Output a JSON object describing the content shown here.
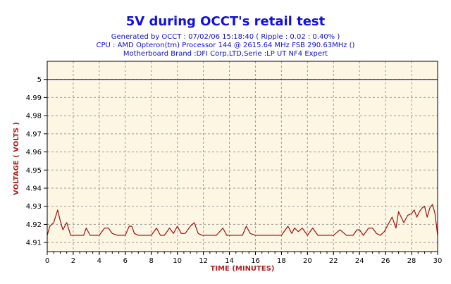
{
  "chart_data": {
    "type": "line",
    "title": "5V during OCCT's retail test",
    "subtitle_lines": [
      "Generated by OCCT : 07/02/06 15:18:40 ( Ripple : 0.02 : 0.40% )",
      "CPU : AMD Opteron(tm) Processor 144    @ 2615.64 MHz FSB 290.63MHz ()",
      "Motherboard Brand :DFI Corp,LTD,Serie :LP UT NF4 Expert"
    ],
    "xlabel": "TIME (MINUTES)",
    "ylabel": "VOLTAGE ( VOLTS )",
    "xlim": [
      0,
      30
    ],
    "ylim": [
      4.905,
      5.01
    ],
    "x_ticks": [
      "0",
      "2",
      "4",
      "6",
      "8",
      "10",
      "12",
      "14",
      "16",
      "18",
      "20",
      "22",
      "24",
      "26",
      "28",
      "30"
    ],
    "y_ticks": [
      "4.91",
      "4.92",
      "4.93",
      "4.94",
      "4.95",
      "4.96",
      "4.97",
      "4.98",
      "4.99",
      "5"
    ],
    "grid": true,
    "colors": {
      "plot_bg": "#fdf6e3",
      "title": "#1010e0",
      "subtitle": "#1010d0",
      "axis_label": "#b02020",
      "ref_line": "#0000c0",
      "series_line": "#a01010"
    },
    "reference_line": {
      "y": 5.0
    },
    "series": [
      {
        "x": [
          0,
          0.2,
          0.5,
          0.8,
          1.0,
          1.2,
          1.5,
          1.8,
          2.0,
          2.5,
          2.8,
          3.0,
          3.3,
          3.6,
          4.0,
          4.4,
          4.7,
          5.0,
          5.4,
          6.0,
          6.3,
          6.5,
          6.7,
          7.0,
          7.5,
          8.0,
          8.4,
          8.7,
          9.0,
          9.4,
          9.7,
          10.0,
          10.3,
          10.6,
          11.0,
          11.3,
          11.6,
          11.9,
          12.2,
          13.0,
          13.5,
          13.8,
          14.0,
          14.5,
          15.0,
          15.3,
          15.6,
          16.0,
          17.0,
          18.0,
          18.5,
          18.8,
          19.0,
          19.3,
          19.6,
          20.0,
          20.4,
          20.8,
          21.0,
          21.5,
          22.0,
          22.5,
          23.0,
          23.5,
          23.8,
          24.0,
          24.3,
          24.7,
          25.0,
          25.3,
          25.6,
          25.9,
          26.2,
          26.5,
          26.8,
          27.0,
          27.2,
          27.4,
          27.7,
          28.0,
          28.2,
          28.4,
          28.6,
          28.8,
          29.0,
          29.2,
          29.4,
          29.6,
          29.8,
          30.0
        ],
        "values": [
          4.914,
          4.919,
          4.921,
          4.928,
          4.922,
          4.917,
          4.921,
          4.914,
          4.914,
          4.914,
          4.914,
          4.918,
          4.914,
          4.914,
          4.914,
          4.918,
          4.918,
          4.915,
          4.914,
          4.914,
          4.919,
          4.919,
          4.915,
          4.914,
          4.914,
          4.914,
          4.918,
          4.914,
          4.914,
          4.918,
          4.915,
          4.919,
          4.915,
          4.915,
          4.919,
          4.921,
          4.915,
          4.914,
          4.914,
          4.914,
          4.918,
          4.914,
          4.914,
          4.914,
          4.914,
          4.919,
          4.915,
          4.914,
          4.914,
          4.914,
          4.919,
          4.915,
          4.918,
          4.916,
          4.918,
          4.914,
          4.918,
          4.914,
          4.914,
          4.914,
          4.914,
          4.917,
          4.914,
          4.914,
          4.917,
          4.917,
          4.914,
          4.918,
          4.918,
          4.915,
          4.914,
          4.916,
          4.92,
          4.924,
          4.918,
          4.927,
          4.924,
          4.921,
          4.925,
          4.926,
          4.928,
          4.924,
          4.927,
          4.929,
          4.93,
          4.924,
          4.929,
          4.931,
          4.926,
          4.914
        ]
      }
    ]
  }
}
